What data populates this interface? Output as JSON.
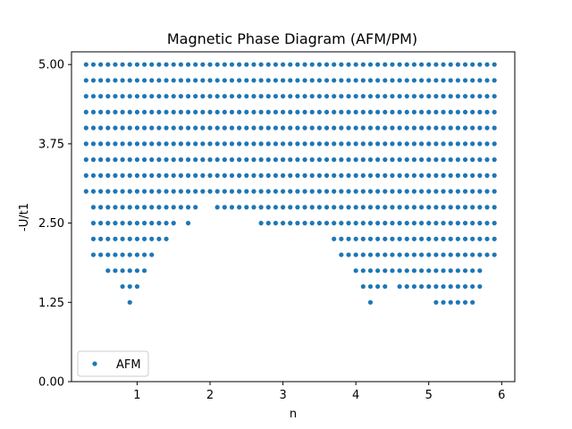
{
  "chart_data": {
    "type": "scatter",
    "title": "Magnetic Phase Diagram (AFM/PM)",
    "xlabel": "n",
    "ylabel": "-U/t1",
    "xlim": [
      0.1,
      6.18
    ],
    "ylim": [
      0.0,
      5.2
    ],
    "xticks": [
      1,
      2,
      3,
      4,
      5,
      6
    ],
    "xtick_labels": [
      "1",
      "2",
      "3",
      "4",
      "5",
      "6"
    ],
    "yticks": [
      0.0,
      1.25,
      2.5,
      3.75,
      5.0
    ],
    "ytick_labels": [
      "0.00",
      "1.25",
      "2.50",
      "3.75",
      "5.00"
    ],
    "grid": false,
    "legend_position": "lower-left",
    "series": [
      {
        "name": "AFM",
        "color": "#1f77b4",
        "marker": "circle",
        "x_grid": {
          "start": 0.3,
          "step": 0.1,
          "count": 57
        },
        "y_grid": {
          "start": 1.25,
          "step": 0.25,
          "count": 16
        },
        "x_ranges_by_y": [
          {
            "y": 1.25,
            "ranges": [
              [
                0.9,
                0.9
              ],
              [
                4.2,
                4.2
              ],
              [
                5.1,
                5.6
              ]
            ]
          },
          {
            "y": 1.5,
            "ranges": [
              [
                0.8,
                1.0
              ],
              [
                4.1,
                4.4
              ],
              [
                4.6,
                5.7
              ]
            ]
          },
          {
            "y": 1.75,
            "ranges": [
              [
                0.6,
                1.1
              ],
              [
                4.0,
                5.7
              ]
            ]
          },
          {
            "y": 2.0,
            "ranges": [
              [
                0.4,
                1.2
              ],
              [
                3.8,
                5.9
              ]
            ]
          },
          {
            "y": 2.25,
            "ranges": [
              [
                0.4,
                1.4
              ],
              [
                3.7,
                5.9
              ]
            ]
          },
          {
            "y": 2.5,
            "ranges": [
              [
                0.4,
                1.5
              ],
              [
                1.7,
                1.7
              ],
              [
                2.7,
                5.9
              ]
            ]
          },
          {
            "y": 2.75,
            "ranges": [
              [
                0.4,
                1.8
              ],
              [
                2.1,
                5.9
              ]
            ]
          },
          {
            "y": 3.0,
            "ranges": [
              [
                0.3,
                5.9
              ]
            ]
          },
          {
            "y": 3.25,
            "ranges": [
              [
                0.3,
                5.9
              ]
            ]
          },
          {
            "y": 3.5,
            "ranges": [
              [
                0.3,
                5.9
              ]
            ]
          },
          {
            "y": 3.75,
            "ranges": [
              [
                0.3,
                5.9
              ]
            ]
          },
          {
            "y": 4.0,
            "ranges": [
              [
                0.3,
                5.9
              ]
            ]
          },
          {
            "y": 4.25,
            "ranges": [
              [
                0.3,
                5.9
              ]
            ]
          },
          {
            "y": 4.5,
            "ranges": [
              [
                0.3,
                5.9
              ]
            ]
          },
          {
            "y": 4.75,
            "ranges": [
              [
                0.3,
                5.9
              ]
            ]
          },
          {
            "y": 5.0,
            "ranges": [
              [
                0.3,
                5.9
              ]
            ]
          }
        ]
      }
    ]
  }
}
